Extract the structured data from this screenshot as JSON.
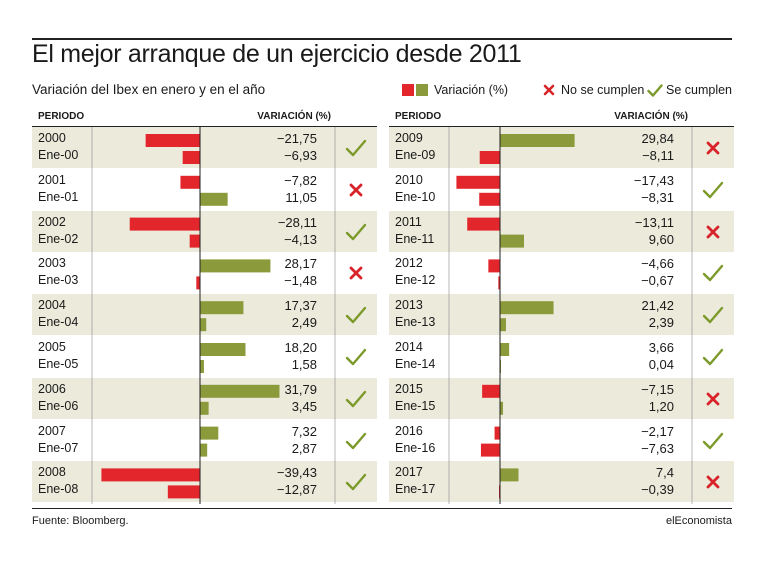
{
  "title": "El mejor arranque de un ejercicio desde 2011",
  "subtitle": "Variación del Ibex en enero y en el año",
  "legend": {
    "variation_label": "Variación (%)",
    "no_label": "No se cumplen",
    "yes_label": "Se cumplen",
    "colors": {
      "year": "#e3262c",
      "jan": "#8b9a3b",
      "cross": "#d8232a",
      "check": "#7c9a2a"
    }
  },
  "table_headers": {
    "period": "PERIODO",
    "variation": "VARIACIÓN (%)"
  },
  "source": "Fuente: Bloomberg.",
  "brand": "elEconomista",
  "chart_data": {
    "type": "bar",
    "title": "El mejor arranque de un ejercicio desde 2011",
    "subtitle": "Variación del Ibex en enero y en el año",
    "series": [
      {
        "name": "Variación (%)",
        "role": "year"
      },
      {
        "name": "Variación (%)",
        "role": "january"
      }
    ],
    "rows": [
      {
        "year": "2000",
        "jan": "Ene-00",
        "year_value": -21.75,
        "year_text": "−21,75",
        "jan_value": -6.93,
        "jan_text": "−6,93",
        "fulfilled": true
      },
      {
        "year": "2001",
        "jan": "Ene-01",
        "year_value": -7.82,
        "year_text": "−7,82",
        "jan_value": 11.05,
        "jan_text": "11,05",
        "fulfilled": false
      },
      {
        "year": "2002",
        "jan": "Ene-02",
        "year_value": -28.11,
        "year_text": "−28,11",
        "jan_value": -4.13,
        "jan_text": "−4,13",
        "fulfilled": true
      },
      {
        "year": "2003",
        "jan": "Ene-03",
        "year_value": 28.17,
        "year_text": "28,17",
        "jan_value": -1.48,
        "jan_text": "−1,48",
        "fulfilled": false
      },
      {
        "year": "2004",
        "jan": "Ene-04",
        "year_value": 17.37,
        "year_text": "17,37",
        "jan_value": 2.49,
        "jan_text": "2,49",
        "fulfilled": true
      },
      {
        "year": "2005",
        "jan": "Ene-05",
        "year_value": 18.2,
        "year_text": "18,20",
        "jan_value": 1.58,
        "jan_text": "1,58",
        "fulfilled": true
      },
      {
        "year": "2006",
        "jan": "Ene-06",
        "year_value": 31.79,
        "year_text": "31,79",
        "jan_value": 3.45,
        "jan_text": "3,45",
        "fulfilled": true
      },
      {
        "year": "2007",
        "jan": "Ene-07",
        "year_value": 7.32,
        "year_text": "7,32",
        "jan_value": 2.87,
        "jan_text": "2,87",
        "fulfilled": true
      },
      {
        "year": "2008",
        "jan": "Ene-08",
        "year_value": -39.43,
        "year_text": "−39,43",
        "jan_value": -12.87,
        "jan_text": "−12,87",
        "fulfilled": true
      },
      {
        "year": "2009",
        "jan": "Ene-09",
        "year_value": 29.84,
        "year_text": "29,84",
        "jan_value": -8.11,
        "jan_text": "−8,11",
        "fulfilled": false
      },
      {
        "year": "2010",
        "jan": "Ene-10",
        "year_value": -17.43,
        "year_text": "−17,43",
        "jan_value": -8.31,
        "jan_text": "−8,31",
        "fulfilled": true
      },
      {
        "year": "2011",
        "jan": "Ene-11",
        "year_value": -13.11,
        "year_text": "−13,11",
        "jan_value": 9.6,
        "jan_text": "9,60",
        "fulfilled": false
      },
      {
        "year": "2012",
        "jan": "Ene-12",
        "year_value": -4.66,
        "year_text": "−4,66",
        "jan_value": -0.67,
        "jan_text": "−0,67",
        "fulfilled": true
      },
      {
        "year": "2013",
        "jan": "Ene-13",
        "year_value": 21.42,
        "year_text": "21,42",
        "jan_value": 2.39,
        "jan_text": "2,39",
        "fulfilled": true
      },
      {
        "year": "2014",
        "jan": "Ene-14",
        "year_value": 3.66,
        "year_text": "3,66",
        "jan_value": 0.04,
        "jan_text": "0,04",
        "fulfilled": true
      },
      {
        "year": "2015",
        "jan": "Ene-15",
        "year_value": -7.15,
        "year_text": "−7,15",
        "jan_value": 1.2,
        "jan_text": "1,20",
        "fulfilled": false
      },
      {
        "year": "2016",
        "jan": "Ene-16",
        "year_value": -2.17,
        "year_text": "−2,17",
        "jan_value": -7.63,
        "jan_text": "−7,63",
        "fulfilled": true
      },
      {
        "year": "2017",
        "jan": "Ene-17",
        "year_value": 7.4,
        "year_text": "7,4",
        "jan_value": -0.39,
        "jan_text": "−0,39",
        "fulfilled": false
      }
    ]
  }
}
